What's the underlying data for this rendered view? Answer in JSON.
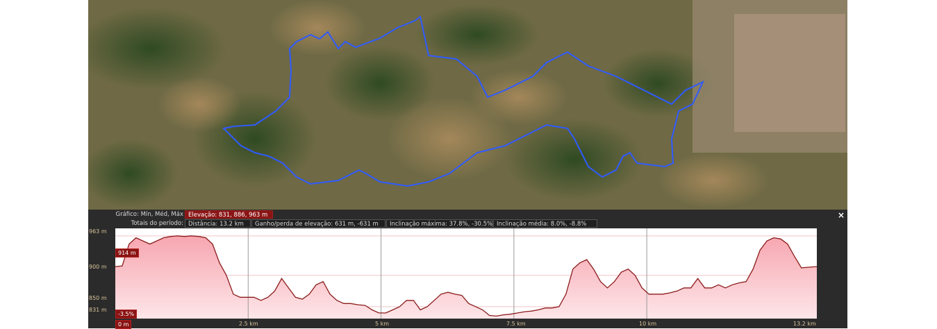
{
  "header": {
    "row1_label": "Gráfico: Mín, Méd, Máx",
    "elevation": "Elevação: 831, 886, 963 m",
    "row2_label": "Totais do período:",
    "distance": "Distância: 13.2 km",
    "gain_loss": "Ganho/perda de elevação: 631 m, -631 m",
    "max_slope": "Inclinação máxima: 37.8%, -30.5%",
    "avg_slope": "Inclinação média: 8.0%, -8.8%"
  },
  "close_label": "×",
  "cursor": {
    "elevation_label": "914 m",
    "slope_label": "-3.5%",
    "distance_label": "0 m"
  },
  "colors": {
    "route": "#2f5bff",
    "profile_line": "#8b1a1a",
    "profile_fill": "#f5b0b6",
    "panel_bg": "#2b2b2b",
    "label_bg": "#8a1414"
  },
  "chart_data": {
    "type": "area",
    "title": "",
    "xlabel": "",
    "ylabel": "",
    "xlim": [
      0,
      13.2
    ],
    "ylim": [
      831,
      975
    ],
    "y_ticks": [
      {
        "value": 963,
        "label": "963 m"
      },
      {
        "value": 900,
        "label": "900 m"
      },
      {
        "value": 850,
        "label": "850 m"
      },
      {
        "value": 831,
        "label": "831 m"
      }
    ],
    "x_ticks": [
      {
        "value": 2.5,
        "label": "2.5 km"
      },
      {
        "value": 5,
        "label": "5 km"
      },
      {
        "value": 7.5,
        "label": "7.5 km"
      },
      {
        "value": 10,
        "label": "10 km"
      },
      {
        "value": 13.2,
        "label": "13.2 km"
      }
    ],
    "x": [
      0,
      0.13,
      0.26,
      0.39,
      0.52,
      0.65,
      0.78,
      0.91,
      1.04,
      1.17,
      1.3,
      1.43,
      1.57,
      1.7,
      1.83,
      1.96,
      2.09,
      2.22,
      2.35,
      2.48,
      2.61,
      2.74,
      2.87,
      3,
      3.13,
      3.26,
      3.39,
      3.52,
      3.65,
      3.78,
      3.91,
      4.04,
      4.17,
      4.3,
      4.43,
      4.57,
      4.7,
      4.83,
      4.96,
      5.09,
      5.22,
      5.35,
      5.48,
      5.61,
      5.74,
      5.87,
      6,
      6.13,
      6.26,
      6.39,
      6.52,
      6.65,
      6.78,
      6.91,
      7.04,
      7.17,
      7.3,
      7.43,
      7.57,
      7.7,
      7.83,
      7.96,
      8.09,
      8.22,
      8.35,
      8.48,
      8.61,
      8.74,
      8.87,
      9,
      9.13,
      9.26,
      9.39,
      9.52,
      9.65,
      9.78,
      9.91,
      10.04,
      10.17,
      10.3,
      10.43,
      10.57,
      10.7,
      10.83,
      10.96,
      11.09,
      11.22,
      11.35,
      11.48,
      11.61,
      11.74,
      11.87,
      12,
      12.13,
      12.26,
      12.39,
      12.52,
      12.65,
      12.78,
      12.91,
      13.04,
      13.2
    ],
    "series": [
      {
        "values": [
          914,
          915,
          950,
          960,
          955,
          950,
          955,
          960,
          962,
          963,
          962,
          963,
          962,
          960,
          950,
          920,
          900,
          870,
          865,
          865,
          865,
          860,
          865,
          875,
          895,
          880,
          865,
          862,
          870,
          885,
          890,
          870,
          860,
          855,
          855,
          853,
          852,
          845,
          840,
          840,
          845,
          850,
          860,
          860,
          845,
          850,
          860,
          870,
          873,
          870,
          868,
          855,
          850,
          845,
          836,
          835,
          837,
          838,
          840,
          842,
          843,
          845,
          848,
          848,
          850,
          870,
          910,
          920,
          925,
          910,
          890,
          880,
          890,
          905,
          910,
          900,
          880,
          870,
          870,
          870,
          872,
          875,
          880,
          880,
          895,
          880,
          880,
          885,
          880,
          885,
          888,
          890,
          910,
          940,
          955,
          960,
          958,
          950,
          930,
          912,
          913,
          914
        ]
      }
    ]
  }
}
